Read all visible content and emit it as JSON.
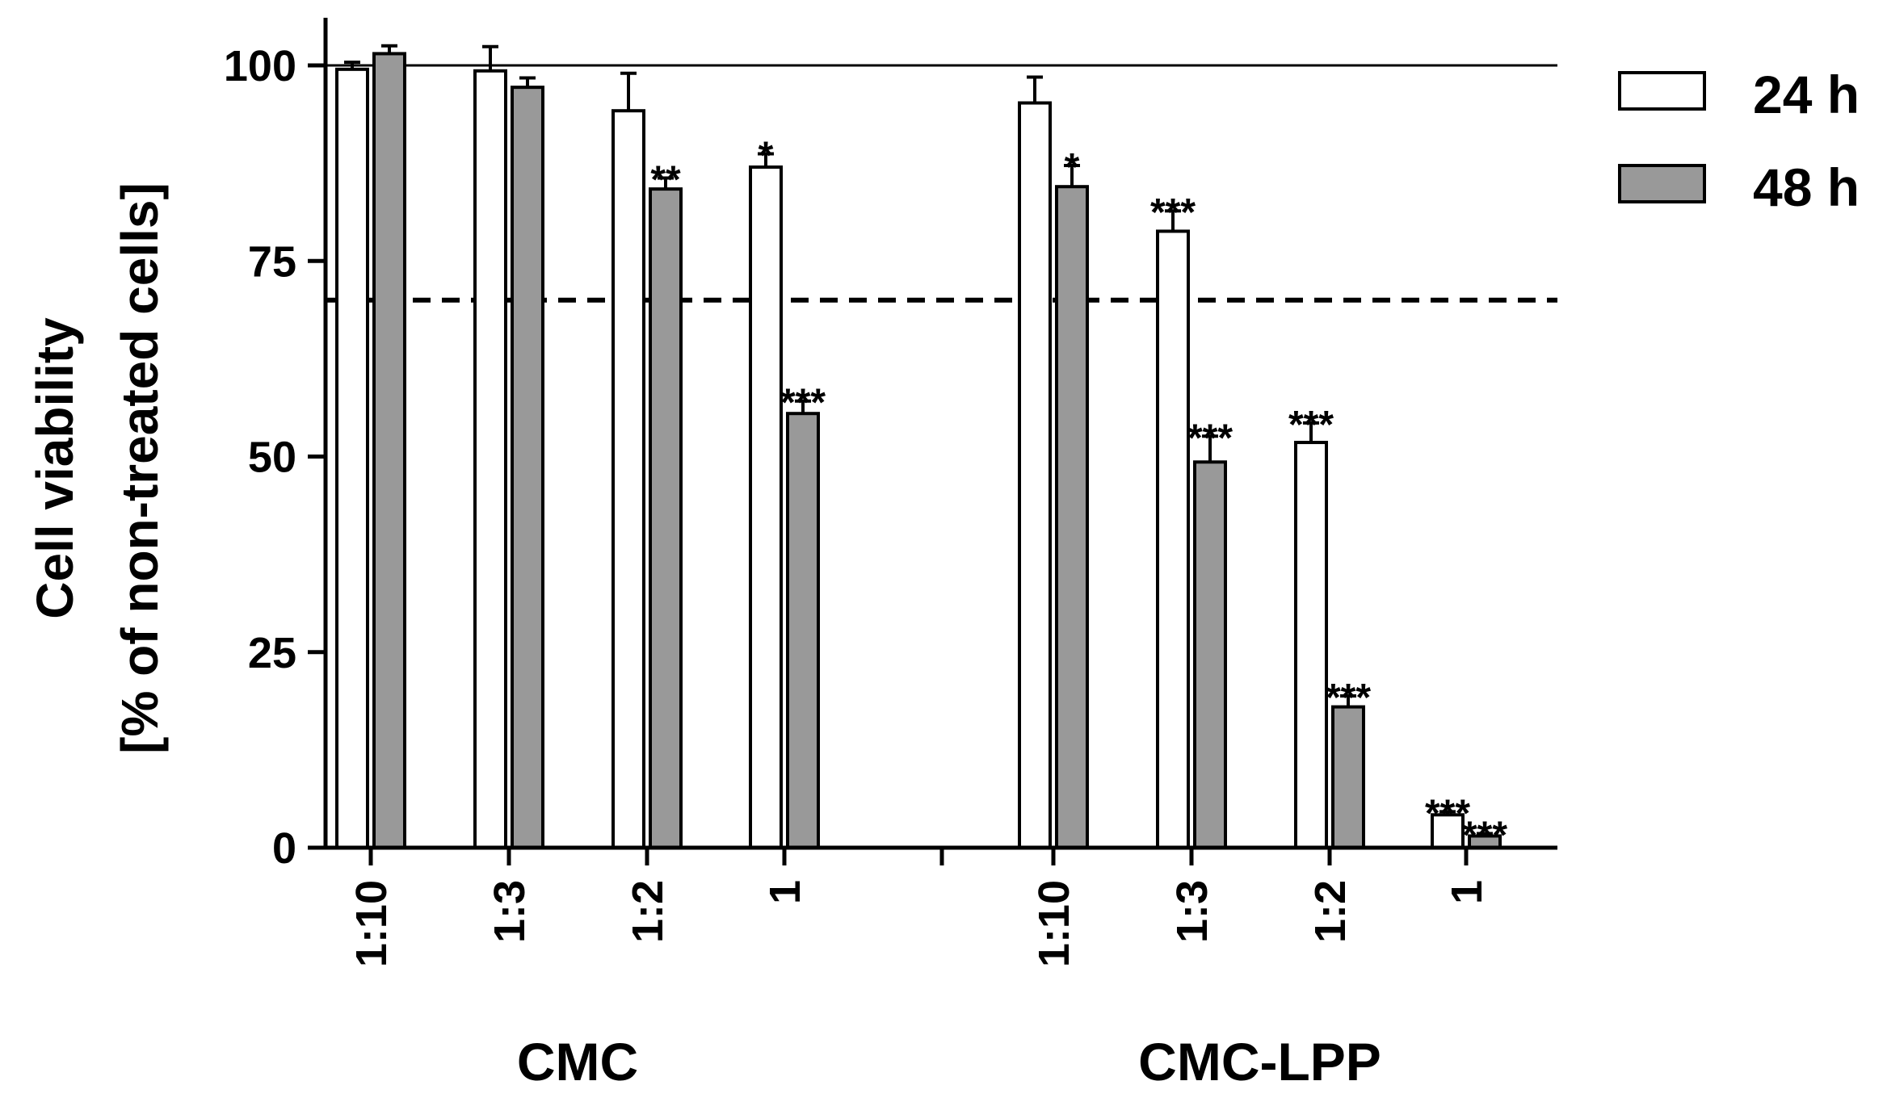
{
  "chart_data": {
    "type": "bar",
    "ylabel_line1": "Cell viability",
    "ylabel_line2": "[% of non-treated cells]",
    "ylim": [
      0,
      100
    ],
    "yticks": [
      0,
      25,
      50,
      75,
      100
    ],
    "reference_lines": [
      {
        "y": 100,
        "style": "solid"
      },
      {
        "y": 70,
        "style": "dashed"
      }
    ],
    "groups": [
      {
        "label": "CMC",
        "categories": [
          "1:10",
          "1:3",
          "1:2",
          "1"
        ]
      },
      {
        "label": "CMC-LPP",
        "categories": [
          "1:10",
          "1:3",
          "1:2",
          "1"
        ]
      }
    ],
    "series": [
      {
        "name": "24 h",
        "color": "#ffffff",
        "values": [
          99.5,
          99.3,
          94.2,
          87.0,
          95.2,
          78.8,
          51.8,
          4.2
        ],
        "errors": [
          0.9,
          3.1,
          4.8,
          1.7,
          3.3,
          2.6,
          2.5,
          0.4
        ],
        "stars": [
          "",
          "",
          "",
          "*",
          "",
          "***",
          "***",
          "***"
        ]
      },
      {
        "name": "48 h",
        "color": "#999999",
        "values": [
          101.5,
          97.2,
          84.2,
          55.5,
          84.5,
          49.3,
          18.0,
          1.5
        ],
        "errors": [
          1.0,
          1.2,
          1.4,
          1.6,
          2.7,
          3.3,
          1.4,
          0.3
        ],
        "stars": [
          "",
          "",
          "**",
          "***",
          "*",
          "***",
          "***",
          "***"
        ]
      }
    ],
    "legend_position": "top-right"
  }
}
